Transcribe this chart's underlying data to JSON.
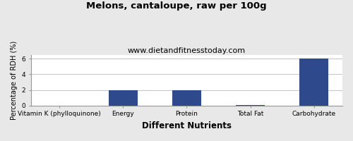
{
  "title": "Melons, cantaloupe, raw per 100g",
  "subtitle": "www.dietandfitnesstoday.com",
  "xlabel": "Different Nutrients",
  "ylabel": "Percentage of RDH (%)",
  "categories": [
    "Vitamin K (phylloquinone)",
    "Energy",
    "Protein",
    "Total Fat",
    "Carbohydrate"
  ],
  "values": [
    0.0,
    2.0,
    2.0,
    0.05,
    6.0
  ],
  "bar_color": "#2e4a8c",
  "ylim": [
    0,
    6.5
  ],
  "yticks": [
    0,
    2,
    4,
    6
  ],
  "figure_background_color": "#e8e8e8",
  "plot_background_color": "#ffffff",
  "grid_color": "#c8c8c8",
  "title_fontsize": 9.5,
  "subtitle_fontsize": 8,
  "xlabel_fontsize": 8.5,
  "ylabel_fontsize": 7,
  "tick_fontsize": 6.5,
  "bar_width": 0.45
}
